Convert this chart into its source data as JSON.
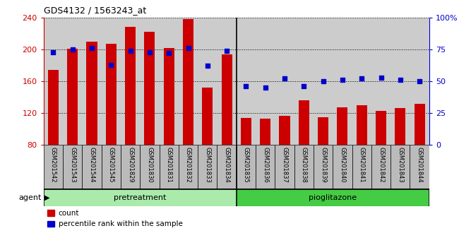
{
  "title": "GDS4132 / 1563243_at",
  "categories": [
    "GSM201542",
    "GSM201543",
    "GSM201544",
    "GSM201545",
    "GSM201829",
    "GSM201830",
    "GSM201831",
    "GSM201832",
    "GSM201833",
    "GSM201834",
    "GSM201835",
    "GSM201836",
    "GSM201837",
    "GSM201838",
    "GSM201839",
    "GSM201840",
    "GSM201841",
    "GSM201842",
    "GSM201843",
    "GSM201844"
  ],
  "bar_values": [
    174,
    201,
    210,
    207,
    228,
    222,
    202,
    238,
    152,
    194,
    114,
    113,
    117,
    136,
    115,
    127,
    130,
    123,
    126,
    132
  ],
  "percentile_values": [
    73,
    75,
    76,
    63,
    74,
    73,
    72,
    76,
    62,
    74,
    46,
    45,
    52,
    46,
    50,
    51,
    52,
    53,
    51,
    50
  ],
  "bar_color": "#cc0000",
  "dot_color": "#0000cc",
  "ylim_left": [
    80,
    240
  ],
  "ylim_right": [
    0,
    100
  ],
  "yticks_left": [
    80,
    120,
    160,
    200,
    240
  ],
  "yticks_right": [
    0,
    25,
    50,
    75,
    100
  ],
  "yticklabels_right": [
    "0",
    "25",
    "50",
    "75",
    "100%"
  ],
  "pretreatment_label": "pretreatment",
  "pioglitazone_label": "pioglitazone",
  "agent_label": "agent",
  "legend_count": "count",
  "legend_percentile": "percentile rank within the sample",
  "pretreatment_count": 10,
  "pioglitazone_count": 10,
  "pretreatment_color": "#aaeaaa",
  "pioglitazone_color": "#44cc44",
  "bg_color": "#cccccc",
  "bar_width": 0.55,
  "cell_color": "#bbbbbb"
}
